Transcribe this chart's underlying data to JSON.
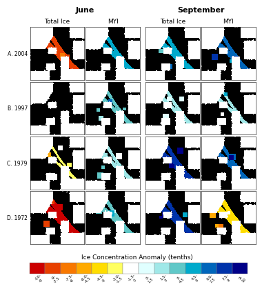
{
  "title_june": "June",
  "title_september": "September",
  "col_headers": [
    "Total Ice",
    "MYI",
    "Total Ice",
    "MYI"
  ],
  "row_labels": [
    "A. 2004",
    "B. 1997",
    "C. 1979",
    "D. 1972"
  ],
  "colorbar_label": "Ice Concentration Anomaly (tenths)",
  "colorbar_tick_labels": [
    "-10 - -9",
    "-9 - -7.5",
    "-7.5 - -6",
    "-6.0 - -4.5",
    "-4.5 - -3",
    "-3.0 - -1.5",
    "-1.5 - 0",
    "0 - 1.5",
    "1.5 - 3",
    "3 - 4.5",
    "4.5 - 6",
    "6.0 - 7.5",
    "7.5 - 9",
    "9 - 10"
  ],
  "colorbar_colors": [
    "#cc0000",
    "#e84000",
    "#f87800",
    "#ffaa00",
    "#ffdd00",
    "#ffff60",
    "#ffffff",
    "#e0ffff",
    "#a0e8e8",
    "#60c8c8",
    "#00aacc",
    "#0066bb",
    "#0033aa",
    "#000088"
  ],
  "figure_bg": "#ffffff",
  "nrows": 4,
  "ncols": 4,
  "title_fontsize": 8,
  "header_fontsize": 6.5,
  "rowlabel_fontsize": 5.5,
  "cbar_label_fontsize": 6.5,
  "cbar_tick_fontsize": 4.0
}
